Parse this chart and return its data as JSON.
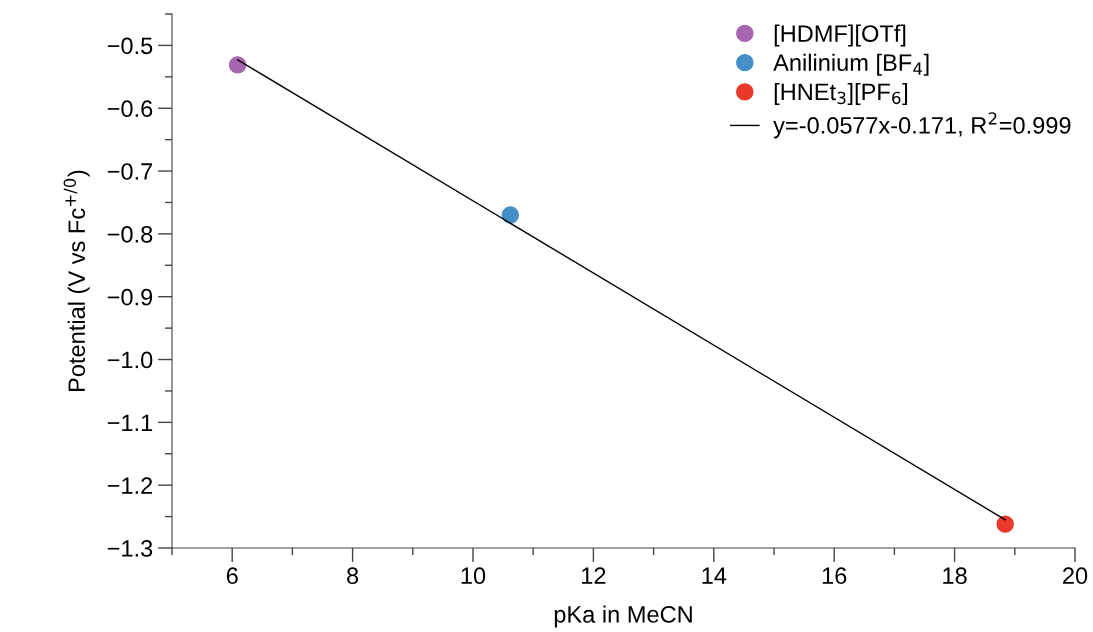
{
  "chart_data": {
    "type": "scatter",
    "xlabel": "pKa in MeCN",
    "ylabel": "Potential (V vs Fc$^{+/0}$)",
    "xlim": [
      5,
      20
    ],
    "ylim": [
      -1.3,
      -0.45
    ],
    "xticks": [
      {
        "value": 5,
        "label": null
      },
      6,
      {
        "value": 7,
        "label": null
      },
      8,
      {
        "value": 9,
        "label": null
      },
      10,
      {
        "value": 11,
        "label": null
      },
      12,
      {
        "value": 13,
        "label": null
      },
      14,
      {
        "value": 15,
        "label": null
      },
      16,
      {
        "value": 17,
        "label": null
      },
      18,
      {
        "value": 19,
        "label": null
      },
      20
    ],
    "yticks": [
      {
        "value": -1.3,
        "label": "−1.3"
      },
      {
        "value": -1.25,
        "label": null
      },
      {
        "value": -1.2,
        "label": "−1.2"
      },
      {
        "value": -1.15,
        "label": null
      },
      {
        "value": -1.1,
        "label": "−1.1"
      },
      {
        "value": -1.05,
        "label": null
      },
      {
        "value": -1.0,
        "label": "−1.0"
      },
      {
        "value": -0.95,
        "label": null
      },
      {
        "value": -0.9,
        "label": "−0.9"
      },
      {
        "value": -0.85,
        "label": null
      },
      {
        "value": -0.8,
        "label": "−0.8"
      },
      {
        "value": -0.75,
        "label": null
      },
      {
        "value": -0.7,
        "label": "−0.7"
      },
      {
        "value": -0.65,
        "label": null
      },
      {
        "value": -0.6,
        "label": "−0.6"
      },
      {
        "value": -0.55,
        "label": null
      },
      {
        "value": -0.5,
        "label": "−0.5"
      },
      {
        "value": -0.45,
        "label": null
      }
    ],
    "grid": false,
    "legend": "top right",
    "series": [
      {
        "name": "[HDMF][OTf]",
        "color": "#a866b0",
        "x": [
          6.09
        ],
        "values": [
          -0.531
        ],
        "marker": "circle"
      },
      {
        "name": "Anilinium [BF$_{4}$]",
        "color": "#4490c6",
        "x": [
          10.62
        ],
        "values": [
          -0.77
        ],
        "marker": "circle"
      },
      {
        "name": "[HNEt$_{3}$][PF$_{6}$]",
        "color": "#e8392a",
        "x": [
          18.84
        ],
        "values": [
          -1.262
        ],
        "marker": "circle"
      },
      {
        "name": "y=-0.0577x-0.171, R$^{2}$=0.999",
        "type": "line",
        "color": "#000000",
        "x": [
          6.09,
          18.84
        ],
        "values": [
          -0.523,
          -1.255
        ]
      }
    ]
  }
}
